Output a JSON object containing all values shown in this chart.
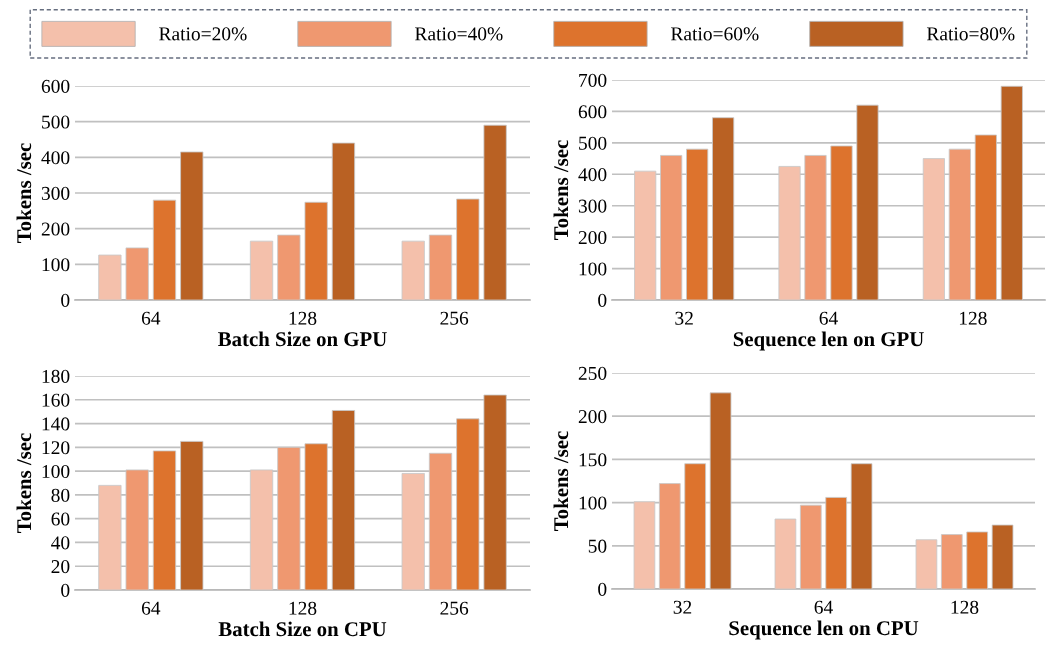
{
  "chart_data": [
    {
      "type": "bar",
      "categories": [
        "64",
        "128",
        "256"
      ],
      "xlabel": "Batch Size on GPU",
      "ylabel": "Tokens /sec",
      "ylim": [
        0,
        600
      ],
      "yticks": [
        0,
        100,
        200,
        300,
        400,
        500,
        600
      ],
      "grid": "y",
      "legend": "top",
      "series": [
        {
          "name": "Ratio=20%",
          "color": "#f4c0ab",
          "values": [
            126,
            165,
            165
          ]
        },
        {
          "name": "Ratio=40%",
          "color": "#ef9870",
          "values": [
            146,
            182,
            182
          ]
        },
        {
          "name": "Ratio=60%",
          "color": "#dd732d",
          "values": [
            280,
            274,
            283
          ]
        },
        {
          "name": "Ratio=80%",
          "color": "#b96123",
          "values": [
            415,
            440,
            490
          ]
        }
      ]
    },
    {
      "type": "bar",
      "categories": [
        "32",
        "64",
        "128"
      ],
      "xlabel": "Sequence len on GPU",
      "ylabel": "Tokens /sec",
      "ylim": [
        0,
        700
      ],
      "yticks": [
        0,
        100,
        200,
        300,
        400,
        500,
        600,
        700
      ],
      "grid": "y",
      "series": [
        {
          "color": "#f4c0ab",
          "values": [
            410,
            425,
            450
          ]
        },
        {
          "color": "#ef9870",
          "values": [
            460,
            460,
            480
          ]
        },
        {
          "color": "#dd732d",
          "values": [
            480,
            490,
            525
          ]
        },
        {
          "color": "#b96123",
          "values": [
            580,
            620,
            680
          ]
        }
      ]
    },
    {
      "type": "bar",
      "categories": [
        "64",
        "128",
        "256"
      ],
      "xlabel": "Batch Size on CPU",
      "ylabel": "Tokens /sec",
      "ylim": [
        0,
        180
      ],
      "yticks": [
        0,
        20,
        40,
        60,
        80,
        100,
        120,
        140,
        160,
        180
      ],
      "grid": "y",
      "series": [
        {
          "color": "#f4c0ab",
          "values": [
            88,
            101,
            98
          ]
        },
        {
          "color": "#ef9870",
          "values": [
            101,
            120,
            115
          ]
        },
        {
          "color": "#dd732d",
          "values": [
            117,
            123,
            144
          ]
        },
        {
          "color": "#b96123",
          "values": [
            125,
            151,
            164
          ]
        }
      ]
    },
    {
      "type": "bar",
      "categories": [
        "32",
        "64",
        "128"
      ],
      "xlabel": "Sequence len on CPU",
      "ylabel": "Tokens /sec",
      "ylim": [
        0,
        250
      ],
      "yticks": [
        0,
        50,
        100,
        150,
        200,
        250
      ],
      "grid": "y",
      "series": [
        {
          "color": "#f4c0ab",
          "values": [
            101,
            81,
            57
          ]
        },
        {
          "color": "#ef9870",
          "values": [
            122,
            97,
            63
          ]
        },
        {
          "color": "#dd732d",
          "values": [
            145,
            106,
            66
          ]
        },
        {
          "color": "#b96123",
          "values": [
            227,
            145,
            74
          ]
        }
      ]
    }
  ]
}
